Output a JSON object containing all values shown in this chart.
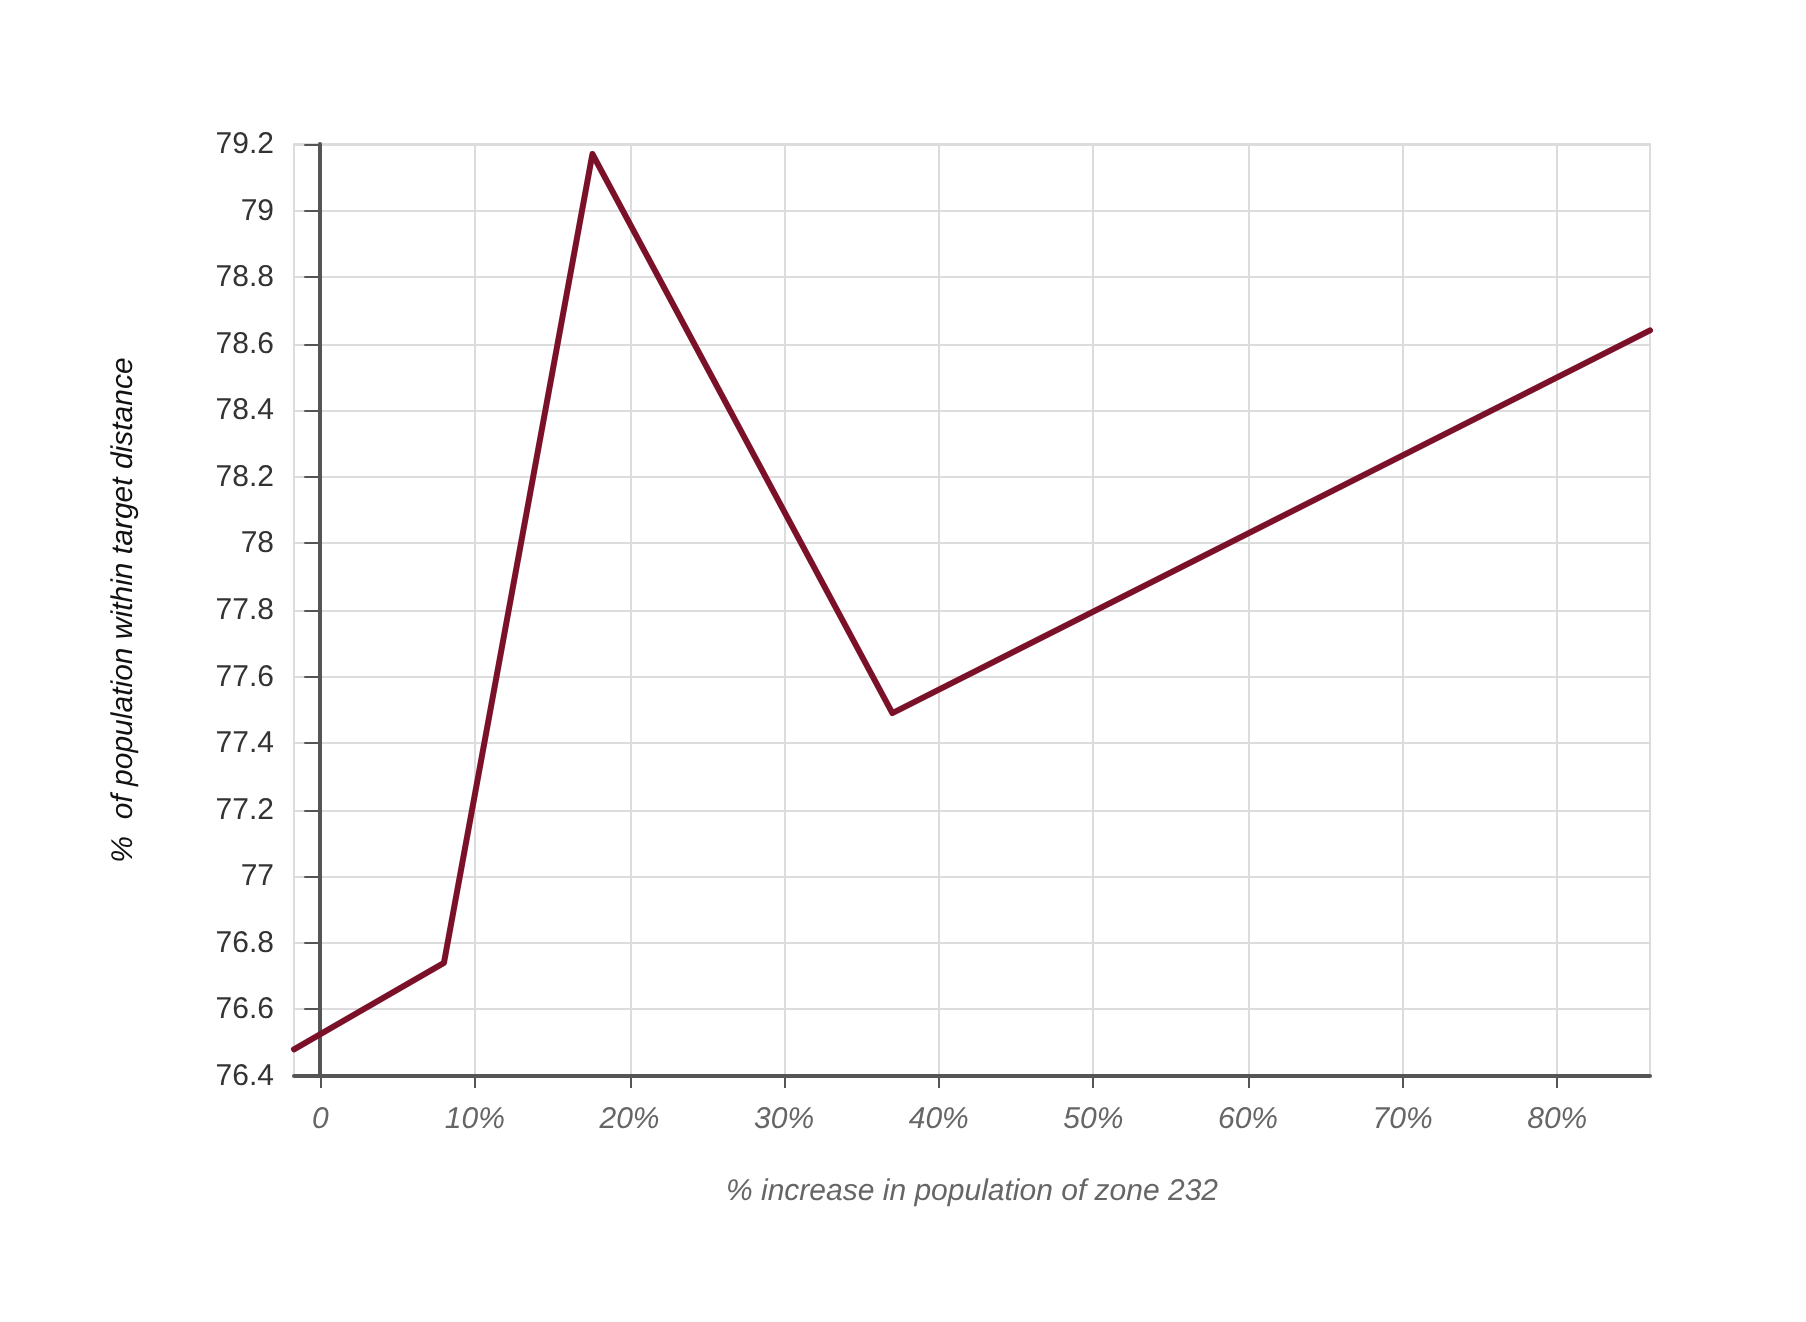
{
  "chart_data": {
    "type": "line",
    "xlabel": "% increase in population of zone 232",
    "ylabel": "%  of population within target distance",
    "x": [
      -1.7,
      8.0,
      17.6,
      37.0,
      86.0
    ],
    "series": [
      {
        "color": "#7b1128",
        "values": [
          76.48,
          76.74,
          79.17,
          77.49,
          78.64
        ]
      }
    ],
    "xlim": [
      -1.7,
      86
    ],
    "xticks": [
      0,
      {
        "value": 10,
        "label": "10%"
      },
      {
        "value": 20,
        "label": "20%"
      },
      {
        "value": 30,
        "label": "30%"
      },
      {
        "value": 40,
        "label": "40%"
      },
      {
        "value": 50,
        "label": "50%"
      },
      {
        "value": 60,
        "label": "60%"
      },
      {
        "value": 70,
        "label": "70%"
      },
      {
        "value": 80,
        "label": "80%"
      }
    ],
    "ylim": [
      76.4,
      79.2
    ],
    "yticks": [
      76.4,
      76.6,
      76.8,
      77,
      77.2,
      77.4,
      77.6,
      77.8,
      78,
      78.2,
      78.4,
      78.6,
      78.8,
      79,
      79.2
    ],
    "grid": true,
    "marker": "none",
    "line_style": "solid"
  }
}
